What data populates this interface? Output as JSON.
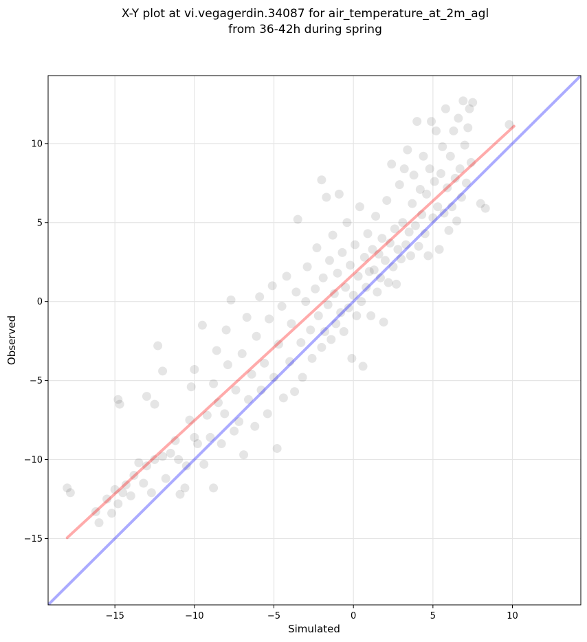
{
  "chart_data": {
    "type": "scatter",
    "title": "X-Y plot at vi.vegagerdin.34087 for air_temperature_at_2m_agl",
    "subtitle": "from 36-42h during spring",
    "xlabel": "Simulated",
    "ylabel": "Observed",
    "xlim": [
      -19.2,
      14.3
    ],
    "ylim": [
      -19.2,
      14.3
    ],
    "xticks": [
      -15,
      -10,
      -5,
      0,
      5,
      10
    ],
    "yticks": [
      -15,
      -10,
      -5,
      0,
      5,
      10
    ],
    "xtick_labels": [
      "−15",
      "−10",
      "−5",
      "0",
      "5",
      "10"
    ],
    "ytick_labels": [
      "−15",
      "−10",
      "−5",
      "0",
      "5",
      "10"
    ],
    "grid": true,
    "colors": {
      "points": "#000000",
      "identity_line": "#0000ff",
      "fit_line": "#ff0000",
      "grid": "#e5e5e5"
    },
    "reference_lines": [
      {
        "kind": "identity",
        "x": [
          -19.2,
          14.3
        ],
        "y": [
          -19.2,
          14.3
        ],
        "color": "#0000ff"
      },
      {
        "kind": "fit",
        "x": [
          -18.0,
          10.1
        ],
        "y": [
          -14.95,
          11.1
        ],
        "color": "#ff0000"
      }
    ],
    "sample_points": [
      [
        -18.0,
        -11.8
      ],
      [
        -17.8,
        -12.1
      ],
      [
        -16.2,
        -13.3
      ],
      [
        -16.0,
        -14.0
      ],
      [
        -15.5,
        -12.5
      ],
      [
        -15.2,
        -13.4
      ],
      [
        -15.0,
        -11.9
      ],
      [
        -14.8,
        -12.8
      ],
      [
        -14.8,
        -6.2
      ],
      [
        -14.7,
        -6.5
      ],
      [
        -14.5,
        -12.1
      ],
      [
        -14.3,
        -11.6
      ],
      [
        -14.0,
        -12.3
      ],
      [
        -13.8,
        -11.0
      ],
      [
        -13.5,
        -10.2
      ],
      [
        -13.2,
        -11.5
      ],
      [
        -13.0,
        -10.4
      ],
      [
        -13.0,
        -6.0
      ],
      [
        -12.7,
        -12.1
      ],
      [
        -12.5,
        -10.0
      ],
      [
        -12.5,
        -6.5
      ],
      [
        -12.3,
        -2.8
      ],
      [
        -12.0,
        -9.8
      ],
      [
        -12.0,
        -4.4
      ],
      [
        -11.8,
        -11.2
      ],
      [
        -11.5,
        -9.6
      ],
      [
        -11.2,
        -8.8
      ],
      [
        -11.0,
        -10.0
      ],
      [
        -10.9,
        -12.2
      ],
      [
        -10.6,
        -11.8
      ],
      [
        -10.5,
        -10.4
      ],
      [
        -10.3,
        -7.5
      ],
      [
        -10.2,
        -5.4
      ],
      [
        -10.0,
        -8.6
      ],
      [
        -10.0,
        -4.3
      ],
      [
        -9.8,
        -9.0
      ],
      [
        -9.5,
        -1.5
      ],
      [
        -9.4,
        -10.3
      ],
      [
        -9.2,
        -7.2
      ],
      [
        -9.0,
        -8.6
      ],
      [
        -8.8,
        -11.8
      ],
      [
        -8.8,
        -5.2
      ],
      [
        -8.6,
        -3.1
      ],
      [
        -8.5,
        -6.4
      ],
      [
        -8.3,
        -9.0
      ],
      [
        -8.1,
        -7.1
      ],
      [
        -8.0,
        -1.8
      ],
      [
        -7.9,
        -4.0
      ],
      [
        -7.7,
        0.1
      ],
      [
        -7.5,
        -8.2
      ],
      [
        -7.4,
        -5.6
      ],
      [
        -7.2,
        -7.6
      ],
      [
        -7.0,
        -3.3
      ],
      [
        -6.9,
        -9.7
      ],
      [
        -6.7,
        -1.0
      ],
      [
        -6.6,
        -6.2
      ],
      [
        -6.4,
        -4.6
      ],
      [
        -6.2,
        -7.9
      ],
      [
        -6.1,
        -2.2
      ],
      [
        -5.9,
        0.3
      ],
      [
        -5.8,
        -5.6
      ],
      [
        -5.6,
        -3.9
      ],
      [
        -5.4,
        -7.1
      ],
      [
        -5.3,
        -1.1
      ],
      [
        -5.1,
        1.0
      ],
      [
        -5.0,
        -4.8
      ],
      [
        -4.8,
        -9.3
      ],
      [
        -4.7,
        -2.7
      ],
      [
        -4.5,
        -0.3
      ],
      [
        -4.4,
        -6.1
      ],
      [
        -4.2,
        1.6
      ],
      [
        -4.0,
        -3.8
      ],
      [
        -3.9,
        -1.4
      ],
      [
        -3.7,
        -5.7
      ],
      [
        -3.6,
        0.6
      ],
      [
        -3.5,
        5.2
      ],
      [
        -3.3,
        -2.6
      ],
      [
        -3.2,
        -4.8
      ],
      [
        -3.0,
        0.0
      ],
      [
        -2.9,
        2.2
      ],
      [
        -2.7,
        -1.8
      ],
      [
        -2.6,
        -3.6
      ],
      [
        -2.4,
        0.8
      ],
      [
        -2.3,
        3.4
      ],
      [
        -2.2,
        -0.9
      ],
      [
        -2.0,
        -2.9
      ],
      [
        -2.0,
        7.7
      ],
      [
        -1.9,
        1.5
      ],
      [
        -1.8,
        -1.9
      ],
      [
        -1.7,
        6.6
      ],
      [
        -1.6,
        -0.2
      ],
      [
        -1.5,
        2.6
      ],
      [
        -1.4,
        -2.4
      ],
      [
        -1.3,
        4.2
      ],
      [
        -1.2,
        0.5
      ],
      [
        -1.1,
        -1.4
      ],
      [
        -1.0,
        1.8
      ],
      [
        -0.9,
        6.8
      ],
      [
        -0.8,
        -0.7
      ],
      [
        -0.7,
        3.1
      ],
      [
        -0.6,
        -1.9
      ],
      [
        -0.5,
        0.9
      ],
      [
        -0.4,
        5.0
      ],
      [
        -0.3,
        -0.4
      ],
      [
        -0.2,
        2.3
      ],
      [
        -0.1,
        -3.6
      ],
      [
        0.0,
        0.4
      ],
      [
        0.1,
        3.6
      ],
      [
        0.2,
        -0.9
      ],
      [
        0.3,
        1.6
      ],
      [
        0.4,
        6.0
      ],
      [
        0.5,
        0.0
      ],
      [
        0.6,
        -4.1
      ],
      [
        0.7,
        2.8
      ],
      [
        0.8,
        0.9
      ],
      [
        0.9,
        4.3
      ],
      [
        1.0,
        1.9
      ],
      [
        1.1,
        -0.9
      ],
      [
        1.2,
        3.3
      ],
      [
        1.3,
        2.0
      ],
      [
        1.4,
        5.4
      ],
      [
        1.5,
        0.6
      ],
      [
        1.6,
        3.0
      ],
      [
        1.7,
        1.5
      ],
      [
        1.8,
        4.0
      ],
      [
        1.9,
        -1.3
      ],
      [
        2.0,
        2.6
      ],
      [
        2.1,
        6.4
      ],
      [
        2.2,
        1.2
      ],
      [
        2.3,
        3.7
      ],
      [
        2.4,
        8.7
      ],
      [
        2.5,
        2.2
      ],
      [
        2.6,
        4.6
      ],
      [
        2.7,
        1.1
      ],
      [
        2.8,
        3.3
      ],
      [
        2.9,
        7.4
      ],
      [
        3.0,
        2.7
      ],
      [
        3.1,
        5.0
      ],
      [
        3.2,
        8.4
      ],
      [
        3.3,
        3.6
      ],
      [
        3.4,
        9.6
      ],
      [
        3.5,
        4.4
      ],
      [
        3.6,
        2.9
      ],
      [
        3.7,
        6.2
      ],
      [
        3.8,
        8.0
      ],
      [
        3.9,
        4.8
      ],
      [
        4.0,
        11.4
      ],
      [
        4.1,
        3.5
      ],
      [
        4.2,
        7.1
      ],
      [
        4.3,
        5.5
      ],
      [
        4.4,
        9.2
      ],
      [
        4.5,
        4.3
      ],
      [
        4.6,
        6.8
      ],
      [
        4.7,
        2.9
      ],
      [
        4.8,
        8.4
      ],
      [
        4.9,
        11.4
      ],
      [
        5.0,
        5.3
      ],
      [
        5.1,
        7.6
      ],
      [
        5.2,
        10.8
      ],
      [
        5.3,
        6.0
      ],
      [
        5.4,
        3.3
      ],
      [
        5.5,
        8.1
      ],
      [
        5.6,
        9.8
      ],
      [
        5.7,
        5.6
      ],
      [
        5.8,
        12.2
      ],
      [
        5.9,
        7.2
      ],
      [
        6.0,
        4.5
      ],
      [
        6.1,
        9.2
      ],
      [
        6.2,
        6.0
      ],
      [
        6.3,
        10.8
      ],
      [
        6.4,
        7.8
      ],
      [
        6.5,
        5.1
      ],
      [
        6.6,
        11.6
      ],
      [
        6.7,
        8.4
      ],
      [
        6.8,
        6.6
      ],
      [
        6.9,
        12.7
      ],
      [
        7.0,
        9.9
      ],
      [
        7.1,
        7.5
      ],
      [
        7.2,
        11.0
      ],
      [
        7.3,
        12.2
      ],
      [
        7.4,
        8.8
      ],
      [
        7.5,
        12.6
      ],
      [
        8.0,
        6.2
      ],
      [
        8.3,
        5.9
      ],
      [
        9.8,
        11.2
      ]
    ]
  }
}
